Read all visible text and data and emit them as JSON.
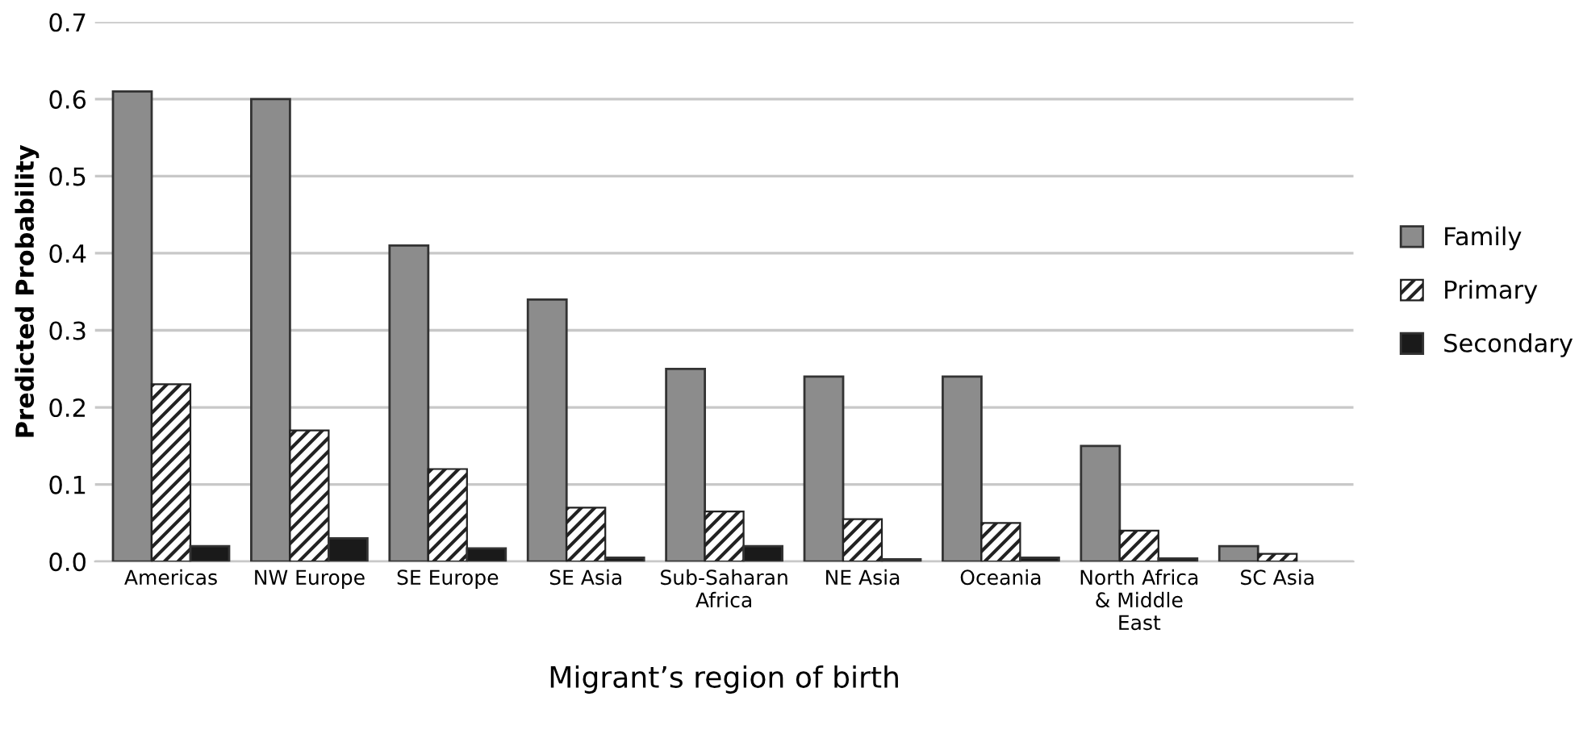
{
  "chart_data": {
    "type": "bar",
    "xlabel": "Migrant’s region of birth",
    "ylabel": "Predicted Probability",
    "categories": [
      "Americas",
      "NW Europe",
      "SE Europe",
      "SE Asia",
      "Sub-Saharan\nAfrica",
      "NE Asia",
      "Oceania",
      "North Africa\n& Middle\nEast",
      "SC Asia"
    ],
    "series": [
      {
        "name": "Family",
        "color": "#8c8c8c",
        "values": [
          0.61,
          0.6,
          0.41,
          0.34,
          0.25,
          0.24,
          0.24,
          0.15,
          0.02
        ]
      },
      {
        "name": "Primary",
        "color": "#222222",
        "values": [
          0.23,
          0.17,
          0.12,
          0.07,
          0.065,
          0.055,
          0.05,
          0.04,
          0.01
        ]
      },
      {
        "name": "Secondary",
        "color": "#1a1a1a",
        "values": [
          0.02,
          0.03,
          0.017,
          0.005,
          0.02,
          0.003,
          0.005,
          0.004,
          null
        ]
      }
    ],
    "ylim": [
      0,
      0.7
    ],
    "yticks": [
      {
        "value": 0,
        "label": "0.0"
      },
      {
        "value": 0.1,
        "label": "0.1"
      },
      {
        "value": 0.2,
        "label": "0.2"
      },
      {
        "value": 0.3,
        "label": "0.3"
      },
      {
        "value": 0.4,
        "label": "0.4"
      },
      {
        "value": 0.5,
        "label": "0.5"
      },
      {
        "value": 0.6,
        "label": "0.6"
      },
      {
        "value": 0.7,
        "label": "0.7"
      }
    ],
    "grid": "y",
    "legend": "right"
  }
}
